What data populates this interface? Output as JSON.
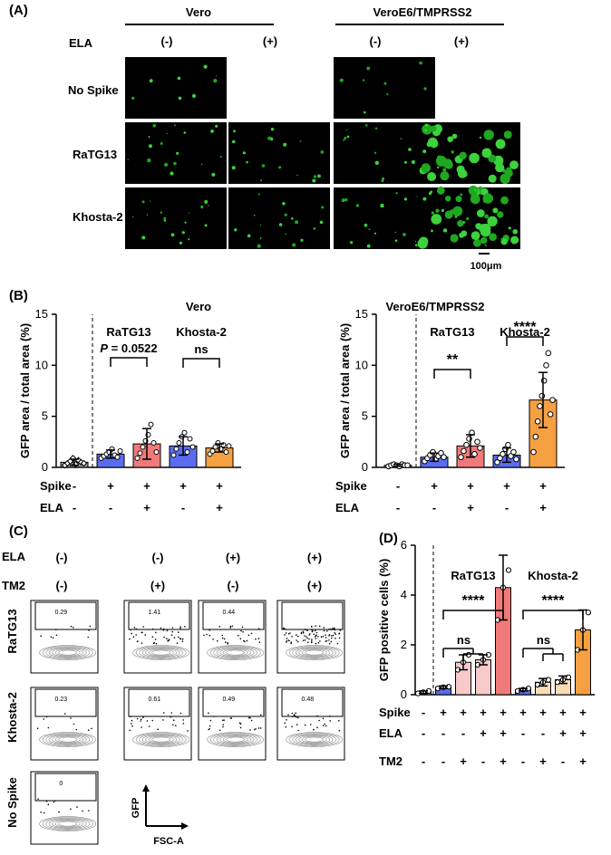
{
  "panels": {
    "A": "(A)",
    "B": "(B)",
    "C": "(C)",
    "D": "(D)"
  },
  "panel_a": {
    "cell_headers": [
      "Vero",
      "VeroE6/TMPRSS2"
    ],
    "ela_label": "ELA",
    "ela_conditions": [
      "(-)",
      "(+)",
      "(-)",
      "(+)"
    ],
    "row_labels": [
      "No Spike",
      "RaTG13",
      "Khosta-2"
    ],
    "scale_bar": "100μm"
  },
  "chart_data": [
    {
      "type": "bar",
      "title": "Vero",
      "ylabel": "GFP area / total area (%)",
      "ylim": [
        0,
        15
      ],
      "yticks": [
        0,
        5,
        10,
        15
      ],
      "group_labels": [
        "RaTG13",
        "Khosta-2"
      ],
      "categories": [
        "1",
        "2",
        "3",
        "4",
        "5"
      ],
      "spike": [
        "-",
        "+",
        "+",
        "+",
        "+"
      ],
      "ela": [
        "-",
        "-",
        "+",
        "-",
        "+"
      ],
      "values": [
        0.5,
        1.3,
        2.3,
        2.1,
        1.9
      ],
      "errors": [
        0.3,
        0.4,
        1.5,
        0.9,
        0.4
      ],
      "colors": [
        "#9a9a9a",
        "#5b6cf0",
        "#f07a7a",
        "#5b6cf0",
        "#f5a042"
      ],
      "points": [
        [
          0.2,
          0.4,
          0.6,
          0.9,
          0.3,
          0.7,
          0.5,
          0.4
        ],
        [
          0.9,
          1.1,
          1.3,
          1.5,
          1.8,
          1.2,
          1.0,
          1.6
        ],
        [
          0.9,
          1.4,
          2.0,
          2.6,
          3.2,
          4.2,
          2.4,
          1.5
        ],
        [
          1.2,
          1.8,
          2.4,
          3.0,
          3.4,
          1.5,
          2.8,
          2.0
        ],
        [
          1.3,
          1.6,
          2.0,
          2.4,
          1.8,
          2.2,
          1.5,
          2.1
        ]
      ],
      "annotations": [
        {
          "label": "P = 0.0522",
          "from": 1,
          "to": 2
        },
        {
          "label": "ns",
          "from": 3,
          "to": 4
        }
      ]
    },
    {
      "type": "bar",
      "title": "VeroE6/TMPRSS2",
      "ylabel": "GFP area / total area (%)",
      "ylim": [
        0,
        15
      ],
      "yticks": [
        0,
        5,
        10,
        15
      ],
      "group_labels": [
        "RaTG13",
        "Khosta-2"
      ],
      "categories": [
        "1",
        "2",
        "3",
        "4",
        "5"
      ],
      "spike": [
        "-",
        "+",
        "+",
        "+",
        "+"
      ],
      "ela": [
        "-",
        "-",
        "+",
        "-",
        "+"
      ],
      "values": [
        0.2,
        1.0,
        2.1,
        1.2,
        6.6
      ],
      "errors": [
        0.1,
        0.4,
        1.1,
        0.7,
        2.7
      ],
      "colors": [
        "#9a9a9a",
        "#5b6cf0",
        "#f07a7a",
        "#5b6cf0",
        "#f5a042"
      ],
      "points": [
        [
          0.1,
          0.2,
          0.3,
          0.2,
          0.1,
          0.3,
          0.2,
          0.2
        ],
        [
          0.6,
          0.9,
          1.2,
          1.5,
          0.8,
          1.1,
          1.4,
          1.0
        ],
        [
          1.0,
          1.6,
          2.2,
          2.8,
          3.4,
          1.3,
          2.5,
          1.9
        ],
        [
          0.5,
          0.9,
          1.3,
          1.8,
          2.2,
          1.1,
          1.5,
          0.8
        ],
        [
          1.5,
          3.0,
          4.5,
          6.0,
          7.0,
          8.5,
          10.0,
          11.2,
          5.2,
          6.6
        ]
      ],
      "annotations": [
        {
          "label": "**",
          "from": 1,
          "to": 2
        },
        {
          "label": "****",
          "from": 3,
          "to": 4
        }
      ]
    },
    {
      "type": "bar",
      "title": "",
      "ylabel": "GFP positive cells (%)",
      "ylim": [
        0,
        6
      ],
      "yticks": [
        0,
        2,
        4,
        6
      ],
      "group_labels": [
        "RaTG13",
        "Khosta-2"
      ],
      "categories": [
        "1",
        "2",
        "3",
        "4",
        "5",
        "6",
        "7",
        "8",
        "9"
      ],
      "spike": [
        "-",
        "+",
        "+",
        "+",
        "+",
        "+",
        "+",
        "+",
        "+"
      ],
      "ela": [
        "-",
        "-",
        "-",
        "+",
        "+",
        "-",
        "-",
        "+",
        "+"
      ],
      "tm2": [
        "-",
        "-",
        "+",
        "-",
        "+",
        "-",
        "+",
        "-",
        "+"
      ],
      "values": [
        0.1,
        0.3,
        1.3,
        1.4,
        4.3,
        0.2,
        0.5,
        0.6,
        2.6
      ],
      "errors": [
        0.05,
        0.05,
        0.3,
        0.2,
        1.3,
        0.05,
        0.15,
        0.15,
        0.8
      ],
      "colors": [
        "#9a9a9a",
        "#5b6cf0",
        "#f7c9c9",
        "#f7c9c9",
        "#f07a7a",
        "#5b6cf0",
        "#f9dcb6",
        "#f9dcb6",
        "#f5a042"
      ],
      "points": [
        [
          0.05,
          0.1,
          0.15
        ],
        [
          0.25,
          0.3,
          0.32
        ],
        [
          1.0,
          1.3,
          1.6
        ],
        [
          1.2,
          1.4,
          1.6
        ],
        [
          3.0,
          4.3,
          5.0
        ],
        [
          0.15,
          0.2,
          0.25
        ],
        [
          0.4,
          0.5,
          0.6
        ],
        [
          0.5,
          0.6,
          0.7
        ],
        [
          1.8,
          2.6,
          3.3
        ]
      ],
      "annotations": [
        {
          "label": "****",
          "from": 1,
          "to": 4
        },
        {
          "label": "ns",
          "from": 1,
          "to": 3
        },
        {
          "label": "****",
          "from": 5,
          "to": 8
        },
        {
          "label": "ns",
          "from": 5,
          "to": 7
        }
      ]
    }
  ],
  "row_labels": {
    "spike": "Spike",
    "ela": "ELA",
    "tm2": "TM2"
  },
  "panel_c": {
    "ela_label": "ELA",
    "tm2_label": "TM2",
    "ela_conditions": [
      "(-)",
      "(-)",
      "(+)",
      "(+)"
    ],
    "tm2_conditions": [
      "(-)",
      "(+)",
      "(-)",
      "(+)"
    ],
    "row_labels": [
      "RaTG13",
      "Khosta-2",
      "No Spike"
    ],
    "gate_values": [
      [
        "0.29",
        "1.41",
        "0.44",
        ""
      ],
      [
        "0.23",
        "0.61",
        "0.49",
        "0.48"
      ],
      [
        "0"
      ]
    ],
    "axis_y": "GFP",
    "axis_x": "FSC-A"
  }
}
